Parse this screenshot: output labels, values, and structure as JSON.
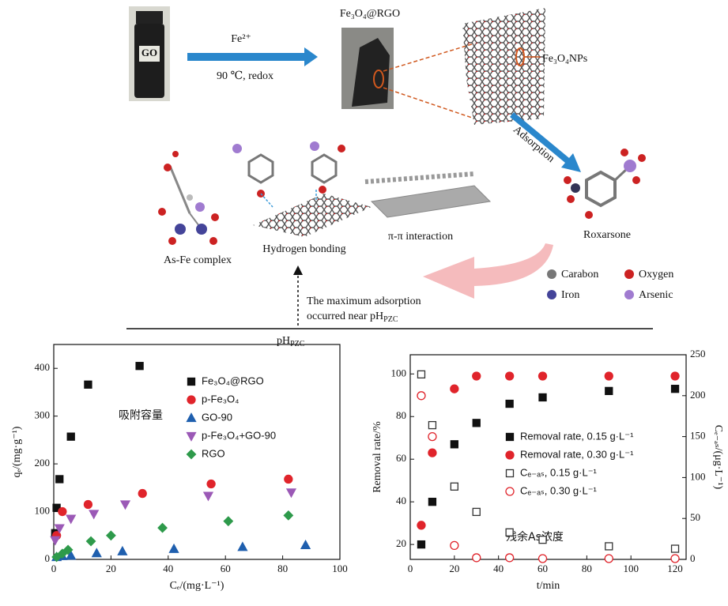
{
  "diagram": {
    "go_label": "GO",
    "reagent": "Fe²⁺",
    "condition": "90 ℃, redox",
    "product": "Fe₃O₄@RGO",
    "nanoparticles": "Fe₃O₄NPs",
    "step": "Adsorption",
    "molecule": "Roxarsone",
    "mechanisms": [
      "As-Fe complex",
      "Hydrogen bonding",
      "π-π interaction"
    ],
    "legend": [
      "Carabon",
      "Oxygen",
      "Iron",
      "Arsenic"
    ],
    "note": {
      "line1": "The maximum adsorption",
      "line2": {
        "text": "occurred near pH",
        "sub": "PZC"
      }
    },
    "axis_label": {
      "text": "pH",
      "sub": "PZC"
    }
  },
  "chart_data": [
    {
      "type": "scatter",
      "xlabel": "Cₑ/(mg·L⁻¹)",
      "ylabel": "qₑ/(mg·g⁻¹)",
      "annotation": "吸附容量",
      "xlim": [
        0,
        100
      ],
      "ylim": [
        0,
        450
      ],
      "xticks": [
        0,
        20,
        40,
        60,
        80,
        100
      ],
      "yticks": [
        0,
        100,
        200,
        300,
        400
      ],
      "series": [
        {
          "name": "Fe₃O₄@RGO",
          "color": "#111111",
          "marker": "square",
          "filled": true,
          "x": [
            0.5,
            1,
            2,
            6,
            12,
            30
          ],
          "values": [
            55,
            108,
            168,
            257,
            366,
            405
          ]
        },
        {
          "name": "p-Fe₃O₄",
          "color": "#e0242b",
          "marker": "circle",
          "filled": true,
          "x": [
            1,
            3,
            12,
            31,
            55,
            82
          ],
          "values": [
            50,
            100,
            115,
            138,
            158,
            168
          ]
        },
        {
          "name": "GO-90",
          "color": "#1f5fae",
          "marker": "triangle",
          "filled": true,
          "x": [
            1,
            3,
            6,
            15,
            24,
            42,
            66,
            88
          ],
          "values": [
            5,
            7,
            8,
            13,
            17,
            22,
            26,
            30
          ]
        },
        {
          "name": "p-Fe₃O₄+GO-90",
          "color": "#9b59b6",
          "marker": "triangle-down",
          "filled": true,
          "x": [
            0.5,
            2,
            6,
            14,
            25,
            54,
            83
          ],
          "values": [
            40,
            65,
            85,
            95,
            115,
            133,
            140
          ]
        },
        {
          "name": "RGO",
          "color": "#2e9a4b",
          "marker": "diamond",
          "filled": true,
          "x": [
            1,
            3,
            5,
            13,
            20,
            38,
            61,
            82
          ],
          "values": [
            5,
            12,
            20,
            38,
            50,
            66,
            80,
            92
          ]
        }
      ]
    },
    {
      "type": "scatter",
      "xlabel": "t/min",
      "ylabel": "Removal rate/%",
      "y2label": "Cₑ₋ₐₛ/(μg·L⁻¹)",
      "annotation": "残余As浓度",
      "xlim": [
        0,
        125
      ],
      "ylim": [
        13,
        109
      ],
      "y2lim": [
        0,
        250
      ],
      "xticks": [
        0,
        20,
        40,
        60,
        80,
        100,
        120
      ],
      "yticks": [
        20,
        40,
        60,
        80,
        100
      ],
      "y2ticks": [
        0,
        50,
        100,
        150,
        200,
        250
      ],
      "x": [
        5,
        10,
        20,
        30,
        45,
        60,
        90,
        120
      ],
      "series": [
        {
          "name": "Removal rate, 0.15 g·L⁻¹",
          "color": "#111111",
          "marker": "square",
          "filled": true,
          "values": [
            20,
            40,
            67,
            77,
            86,
            89,
            92,
            93
          ]
        },
        {
          "name": "Removal rate, 0.30 g·L⁻¹",
          "color": "#e0242b",
          "marker": "circle",
          "filled": true,
          "values": [
            29,
            63,
            93,
            99,
            99,
            99,
            99,
            99
          ]
        },
        {
          "name": "Cₑ₋ₐₛ, 0.15 g·L⁻¹",
          "color": "#333333",
          "marker": "square",
          "filled": false,
          "axis": "y2",
          "values": [
            226,
            164,
            89,
            58,
            33,
            24,
            16,
            13
          ]
        },
        {
          "name": "Cₑ₋ₐₛ, 0.30 g·L⁻¹",
          "color": "#e0242b",
          "marker": "circle",
          "filled": false,
          "axis": "y2",
          "values": [
            200,
            150,
            17,
            2,
            2,
            1,
            1,
            1
          ]
        }
      ]
    }
  ]
}
